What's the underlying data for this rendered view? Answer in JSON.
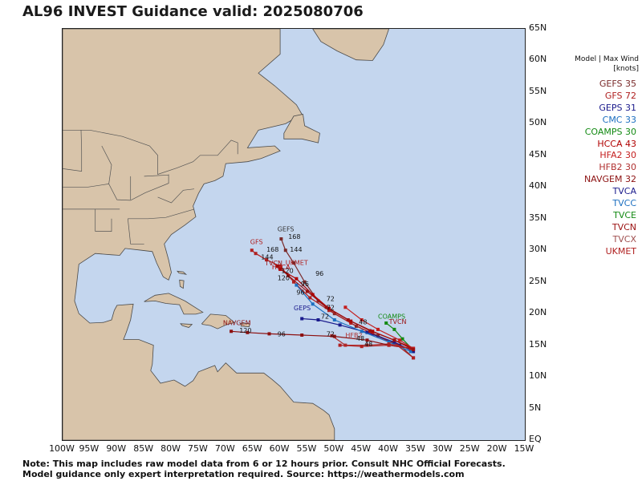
{
  "title": "AL96 INVEST Guidance valid: 2025080706",
  "legend_header": [
    "Model | Max Wind",
    "[knots]"
  ],
  "colors": {
    "ocean": "#c4d6ee",
    "land": "#d8c4aa",
    "border": "#4a4a4a"
  },
  "models": [
    {
      "label": "GEFS 35",
      "color": "#7a2a2a"
    },
    {
      "label": "GFS 72",
      "color": "#b02020"
    },
    {
      "label": "GEPS 31",
      "color": "#1a1a8c"
    },
    {
      "label": "CMC 33",
      "color": "#1c6fc0"
    },
    {
      "label": "COAMPS 30",
      "color": "#138a13"
    },
    {
      "label": "HCCA 43",
      "color": "#b00000"
    },
    {
      "label": "HFA2 30",
      "color": "#c41e1e"
    },
    {
      "label": "HFB2 30",
      "color": "#b03030"
    },
    {
      "label": "NAVGEM 32",
      "color": "#8c1010"
    },
    {
      "label": "TVCA",
      "color": "#1a1a8c"
    },
    {
      "label": "TVCC",
      "color": "#1c6fc0"
    },
    {
      "label": "TVCE",
      "color": "#138a13"
    },
    {
      "label": "TVCN",
      "color": "#9a1010"
    },
    {
      "label": "TVCX",
      "color": "#a05050"
    },
    {
      "label": "UKMET",
      "color": "#b02020"
    }
  ],
  "map": {
    "lon_range": [
      -100,
      -15
    ],
    "lat_range": [
      0,
      65
    ],
    "lat_labels": [
      "65N",
      "60N",
      "55N",
      "50N",
      "45N",
      "40N",
      "35N",
      "30N",
      "25N",
      "20N",
      "15N",
      "10N",
      "5N",
      "EQ"
    ],
    "lon_labels": [
      "100W",
      "95W",
      "90W",
      "85W",
      "80W",
      "75W",
      "70W",
      "65W",
      "60W",
      "55W",
      "50W",
      "45W",
      "40W",
      "35W",
      "30W",
      "25W",
      "20W",
      "15W"
    ]
  },
  "tracks": [
    {
      "model": "GEFS",
      "color": "#7a2a2a",
      "points": [
        [
          -35.5,
          13
        ],
        [
          -38,
          15
        ],
        [
          -42,
          16.5
        ],
        [
          -46,
          18
        ],
        [
          -50,
          20
        ],
        [
          -53,
          22
        ],
        [
          -55.5,
          25
        ],
        [
          -57.5,
          28
        ],
        [
          -59,
          30
        ],
        [
          -59.8,
          31.8
        ]
      ]
    },
    {
      "model": "GFS",
      "color": "#b02020",
      "points": [
        [
          -35.5,
          13
        ],
        [
          -38.5,
          15
        ],
        [
          -43,
          16.8
        ],
        [
          -47,
          18.5
        ],
        [
          -51,
          20.5
        ],
        [
          -54.5,
          22.5
        ],
        [
          -57.5,
          25
        ],
        [
          -60,
          27.5
        ],
        [
          -62.5,
          28.5
        ],
        [
          -64.5,
          29.5
        ],
        [
          -65.2,
          30
        ]
      ]
    },
    {
      "model": "GEPS",
      "color": "#1a1a8c",
      "points": [
        [
          -35.5,
          14
        ],
        [
          -39,
          15.5
        ],
        [
          -44,
          17
        ],
        [
          -49,
          18.2
        ],
        [
          -53,
          19
        ],
        [
          -56,
          19.2
        ]
      ]
    },
    {
      "model": "CMC",
      "color": "#1c6fc0",
      "points": [
        [
          -36,
          14
        ],
        [
          -40,
          15.5
        ],
        [
          -45,
          17.2
        ],
        [
          -50,
          19
        ],
        [
          -54,
          21.5
        ],
        [
          -57,
          24.5
        ]
      ]
    },
    {
      "model": "COAMPS",
      "color": "#138a13",
      "points": [
        [
          -35.8,
          14.5
        ],
        [
          -37.5,
          16
        ],
        [
          -39,
          17.5
        ],
        [
          -40.5,
          18.5
        ]
      ]
    },
    {
      "model": "HCCA",
      "color": "#b00000",
      "points": [
        [
          -35.5,
          14.5
        ],
        [
          -39,
          15.8
        ],
        [
          -43,
          17.2
        ],
        [
          -47,
          18.8
        ],
        [
          -51,
          20.8
        ],
        [
          -54,
          23
        ],
        [
          -57,
          25.5
        ],
        [
          -60,
          27
        ]
      ]
    },
    {
      "model": "HFA2",
      "color": "#c41e1e",
      "points": [
        [
          -35.5,
          14.5
        ],
        [
          -38,
          15.8
        ],
        [
          -42,
          17.5
        ],
        [
          -45,
          19
        ],
        [
          -48,
          21
        ]
      ]
    },
    {
      "model": "HFB2",
      "color": "#b03030",
      "points": [
        [
          -36,
          14.5
        ],
        [
          -40,
          15.2
        ],
        [
          -44,
          15
        ],
        [
          -48,
          15
        ],
        [
          -50.5,
          16.5
        ]
      ]
    },
    {
      "model": "NAVGEM",
      "color": "#8c1010",
      "points": [
        [
          -36,
          14.5
        ],
        [
          -40,
          15
        ],
        [
          -44,
          15.8
        ],
        [
          -50,
          16.4
        ],
        [
          -56,
          16.6
        ],
        [
          -62,
          16.8
        ],
        [
          -66,
          17
        ],
        [
          -69,
          17.2
        ]
      ]
    },
    {
      "model": "UKMET",
      "color": "#b02020",
      "points": [
        [
          -36,
          14.5
        ],
        [
          -40,
          15
        ],
        [
          -45,
          14.8
        ],
        [
          -49,
          15
        ]
      ]
    },
    {
      "model": "TVCN",
      "color": "#9a1010",
      "points": [
        [
          -35.5,
          14.3
        ],
        [
          -39,
          15.8
        ],
        [
          -43.5,
          17.3
        ],
        [
          -47.5,
          19
        ],
        [
          -51.5,
          21
        ],
        [
          -55,
          23.5
        ],
        [
          -58.5,
          26
        ],
        [
          -60.5,
          27.5
        ]
      ]
    }
  ],
  "map_labels": [
    {
      "text": "GEFS",
      "lon": -60.5,
      "lat": 33,
      "color": "#333333"
    },
    {
      "text": "GFS",
      "lon": -65.5,
      "lat": 31,
      "color": "#b02020"
    },
    {
      "text": "168",
      "lon": -58.5,
      "lat": 31.8,
      "color": "#111111"
    },
    {
      "text": "168",
      "lon": -62.5,
      "lat": 29.8,
      "color": "#111111"
    },
    {
      "text": "144",
      "lon": -58.2,
      "lat": 29.8,
      "color": "#111111"
    },
    {
      "text": "144",
      "lon": -63.5,
      "lat": 28.6,
      "color": "#111111"
    },
    {
      "text": "TVCN",
      "lon": -62.8,
      "lat": 27.6,
      "color": "#9a1010"
    },
    {
      "text": "HCCA",
      "lon": -61.5,
      "lat": 27,
      "color": "#b00000"
    },
    {
      "text": "UKMET",
      "lon": -59,
      "lat": 27.7,
      "color": "#b02020"
    },
    {
      "text": "120",
      "lon": -59.8,
      "lat": 26.4,
      "color": "#111111"
    },
    {
      "text": "120",
      "lon": -60.5,
      "lat": 25.3,
      "color": "#111111"
    },
    {
      "text": "96",
      "lon": -53.5,
      "lat": 26,
      "color": "#111111"
    },
    {
      "text": "96",
      "lon": -56.2,
      "lat": 24.3,
      "color": "#111111"
    },
    {
      "text": "96",
      "lon": -57,
      "lat": 23,
      "color": "#111111"
    },
    {
      "text": "72",
      "lon": -51.5,
      "lat": 22,
      "color": "#111111"
    },
    {
      "text": "72",
      "lon": -51.5,
      "lat": 20.6,
      "color": "#111111"
    },
    {
      "text": "72",
      "lon": -52.5,
      "lat": 19.2,
      "color": "#111111"
    },
    {
      "text": "GEPS",
      "lon": -57.5,
      "lat": 20.5,
      "color": "#1a1a8c"
    },
    {
      "text": "NAVGEM",
      "lon": -70.5,
      "lat": 18.2,
      "color": "#8c1010"
    },
    {
      "text": "120",
      "lon": -67.5,
      "lat": 17,
      "color": "#111111"
    },
    {
      "text": "96",
      "lon": -60.5,
      "lat": 16.4,
      "color": "#111111"
    },
    {
      "text": "72",
      "lon": -51.5,
      "lat": 16.4,
      "color": "#111111"
    },
    {
      "text": "HFB2",
      "lon": -48,
      "lat": 16.2,
      "color": "#b03030"
    },
    {
      "text": "COAMPS",
      "lon": -42,
      "lat": 19.2,
      "color": "#138a13"
    },
    {
      "text": "TVCN",
      "lon": -40,
      "lat": 18.4,
      "color": "#9a1010"
    },
    {
      "text": "48",
      "lon": -45.5,
      "lat": 18.3,
      "color": "#111111"
    },
    {
      "text": "48",
      "lon": -46,
      "lat": 15.7,
      "color": "#111111"
    },
    {
      "text": "48",
      "lon": -44.5,
      "lat": 14.8,
      "color": "#111111"
    }
  ],
  "footer": [
    "Note: This map includes raw model data from 6 or 12 hours prior. Consult NHC Official Forecasts.",
    "Model guidance only expert interpretation required. Source: https://weathermodels.com"
  ]
}
